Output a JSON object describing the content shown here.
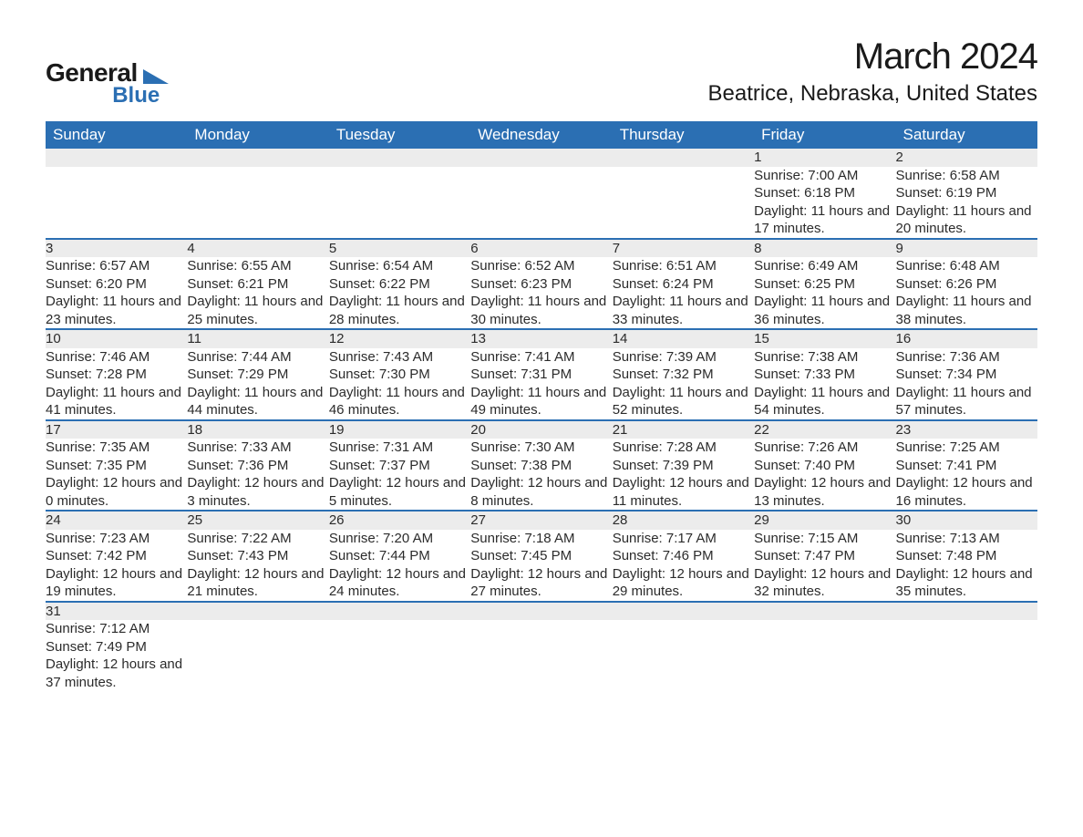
{
  "logo": {
    "word1": "General",
    "word2": "Blue",
    "word1_color": "#1a1a1a",
    "word2_color": "#2b6fb3",
    "triangle_color": "#2b6fb3"
  },
  "title": "March 2024",
  "location": "Beatrice, Nebraska, United States",
  "colors": {
    "header_bg": "#2b6fb3",
    "header_text": "#ffffff",
    "daynum_bg": "#ececec",
    "row_border": "#2b6fb3",
    "text": "#2b2b2b",
    "page_bg": "#ffffff"
  },
  "fonts": {
    "title_size_pt": 40,
    "location_size_pt": 24,
    "header_size_pt": 17,
    "cell_size_pt": 15
  },
  "columns": [
    "Sunday",
    "Monday",
    "Tuesday",
    "Wednesday",
    "Thursday",
    "Friday",
    "Saturday"
  ],
  "weeks": [
    {
      "nums": [
        "",
        "",
        "",
        "",
        "",
        "1",
        "2"
      ],
      "details": [
        "",
        "",
        "",
        "",
        "",
        "Sunrise: 7:00 AM\nSunset: 6:18 PM\nDaylight: 11 hours and 17 minutes.",
        "Sunrise: 6:58 AM\nSunset: 6:19 PM\nDaylight: 11 hours and 20 minutes."
      ]
    },
    {
      "nums": [
        "3",
        "4",
        "5",
        "6",
        "7",
        "8",
        "9"
      ],
      "details": [
        "Sunrise: 6:57 AM\nSunset: 6:20 PM\nDaylight: 11 hours and 23 minutes.",
        "Sunrise: 6:55 AM\nSunset: 6:21 PM\nDaylight: 11 hours and 25 minutes.",
        "Sunrise: 6:54 AM\nSunset: 6:22 PM\nDaylight: 11 hours and 28 minutes.",
        "Sunrise: 6:52 AM\nSunset: 6:23 PM\nDaylight: 11 hours and 30 minutes.",
        "Sunrise: 6:51 AM\nSunset: 6:24 PM\nDaylight: 11 hours and 33 minutes.",
        "Sunrise: 6:49 AM\nSunset: 6:25 PM\nDaylight: 11 hours and 36 minutes.",
        "Sunrise: 6:48 AM\nSunset: 6:26 PM\nDaylight: 11 hours and 38 minutes."
      ]
    },
    {
      "nums": [
        "10",
        "11",
        "12",
        "13",
        "14",
        "15",
        "16"
      ],
      "details": [
        "Sunrise: 7:46 AM\nSunset: 7:28 PM\nDaylight: 11 hours and 41 minutes.",
        "Sunrise: 7:44 AM\nSunset: 7:29 PM\nDaylight: 11 hours and 44 minutes.",
        "Sunrise: 7:43 AM\nSunset: 7:30 PM\nDaylight: 11 hours and 46 minutes.",
        "Sunrise: 7:41 AM\nSunset: 7:31 PM\nDaylight: 11 hours and 49 minutes.",
        "Sunrise: 7:39 AM\nSunset: 7:32 PM\nDaylight: 11 hours and 52 minutes.",
        "Sunrise: 7:38 AM\nSunset: 7:33 PM\nDaylight: 11 hours and 54 minutes.",
        "Sunrise: 7:36 AM\nSunset: 7:34 PM\nDaylight: 11 hours and 57 minutes."
      ]
    },
    {
      "nums": [
        "17",
        "18",
        "19",
        "20",
        "21",
        "22",
        "23"
      ],
      "details": [
        "Sunrise: 7:35 AM\nSunset: 7:35 PM\nDaylight: 12 hours and 0 minutes.",
        "Sunrise: 7:33 AM\nSunset: 7:36 PM\nDaylight: 12 hours and 3 minutes.",
        "Sunrise: 7:31 AM\nSunset: 7:37 PM\nDaylight: 12 hours and 5 minutes.",
        "Sunrise: 7:30 AM\nSunset: 7:38 PM\nDaylight: 12 hours and 8 minutes.",
        "Sunrise: 7:28 AM\nSunset: 7:39 PM\nDaylight: 12 hours and 11 minutes.",
        "Sunrise: 7:26 AM\nSunset: 7:40 PM\nDaylight: 12 hours and 13 minutes.",
        "Sunrise: 7:25 AM\nSunset: 7:41 PM\nDaylight: 12 hours and 16 minutes."
      ]
    },
    {
      "nums": [
        "24",
        "25",
        "26",
        "27",
        "28",
        "29",
        "30"
      ],
      "details": [
        "Sunrise: 7:23 AM\nSunset: 7:42 PM\nDaylight: 12 hours and 19 minutes.",
        "Sunrise: 7:22 AM\nSunset: 7:43 PM\nDaylight: 12 hours and 21 minutes.",
        "Sunrise: 7:20 AM\nSunset: 7:44 PM\nDaylight: 12 hours and 24 minutes.",
        "Sunrise: 7:18 AM\nSunset: 7:45 PM\nDaylight: 12 hours and 27 minutes.",
        "Sunrise: 7:17 AM\nSunset: 7:46 PM\nDaylight: 12 hours and 29 minutes.",
        "Sunrise: 7:15 AM\nSunset: 7:47 PM\nDaylight: 12 hours and 32 minutes.",
        "Sunrise: 7:13 AM\nSunset: 7:48 PM\nDaylight: 12 hours and 35 minutes."
      ]
    },
    {
      "nums": [
        "31",
        "",
        "",
        "",
        "",
        "",
        ""
      ],
      "details": [
        "Sunrise: 7:12 AM\nSunset: 7:49 PM\nDaylight: 12 hours and 37 minutes.",
        "",
        "",
        "",
        "",
        "",
        ""
      ]
    }
  ]
}
